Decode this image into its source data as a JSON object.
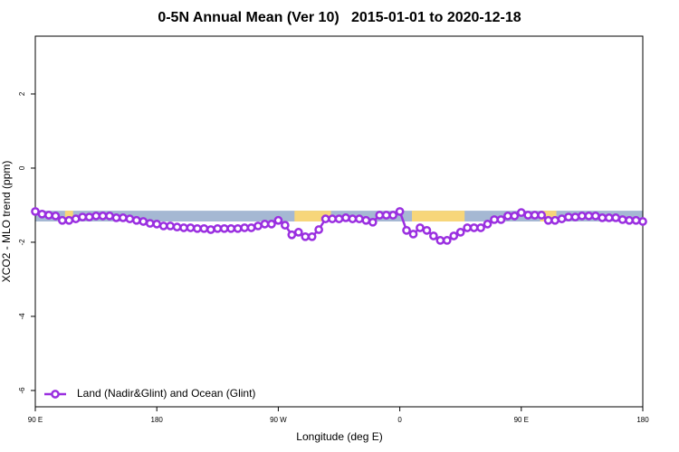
{
  "chart_data": {
    "type": "line",
    "title": "0-5N Annual Mean (Ver 10)   2015-01-01 to 2020-12-18",
    "x_label": "Longitude (deg E)",
    "y_label": "XCO2 - MLO trend (ppm)",
    "xlim": [
      90,
      540
    ],
    "ylim": [
      -6.44,
      3.56
    ],
    "xticks": [
      {
        "value": 90,
        "label": "90 E"
      },
      {
        "value": 180,
        "label": "180"
      },
      {
        "value": 270,
        "label": "90 W"
      },
      {
        "value": 360,
        "label": "0"
      },
      {
        "value": 450,
        "label": "90 E"
      },
      {
        "value": 540,
        "label": "180"
      }
    ],
    "yticks": [
      -6,
      -4,
      -2,
      0,
      2
    ],
    "legend": "bottom-left",
    "surface_band": {
      "ylim": [
        -1.15,
        -1.44
      ],
      "ocean_color": "#a5b8d3",
      "land_color": "#f7d67a",
      "land_ranges": [
        [
          112,
          118
        ],
        [
          282,
          309
        ],
        [
          369,
          408
        ],
        [
          464,
          476
        ]
      ]
    },
    "x": [
      90,
      95,
      100,
      105,
      110,
      115,
      120,
      125,
      130,
      135,
      140,
      145,
      150,
      155,
      160,
      165,
      170,
      175,
      180,
      185,
      190,
      195,
      200,
      205,
      210,
      215,
      220,
      225,
      230,
      235,
      240,
      245,
      250,
      255,
      260,
      265,
      270,
      275,
      280,
      285,
      290,
      295,
      300,
      305,
      310,
      315,
      320,
      325,
      330,
      335,
      340,
      345,
      350,
      355,
      360,
      365,
      370,
      375,
      380,
      385,
      390,
      395,
      400,
      405,
      410,
      415,
      420,
      425,
      430,
      435,
      440,
      445,
      450,
      455,
      460,
      465,
      470,
      475,
      480,
      485,
      490,
      495,
      500,
      505,
      510,
      515,
      520,
      525,
      530,
      535,
      540
    ],
    "series": [
      {
        "name": "Land (Nadir&Glint) and Ocean (Glint)",
        "color": "#9a2fe0",
        "values": [
          -1.17,
          -1.24,
          -1.27,
          -1.29,
          -1.41,
          -1.41,
          -1.37,
          -1.32,
          -1.32,
          -1.29,
          -1.29,
          -1.29,
          -1.34,
          -1.34,
          -1.37,
          -1.41,
          -1.44,
          -1.49,
          -1.51,
          -1.56,
          -1.56,
          -1.59,
          -1.61,
          -1.61,
          -1.63,
          -1.63,
          -1.66,
          -1.63,
          -1.63,
          -1.63,
          -1.63,
          -1.61,
          -1.61,
          -1.56,
          -1.51,
          -1.51,
          -1.41,
          -1.54,
          -1.8,
          -1.73,
          -1.85,
          -1.85,
          -1.66,
          -1.37,
          -1.37,
          -1.37,
          -1.34,
          -1.37,
          -1.37,
          -1.41,
          -1.46,
          -1.27,
          -1.27,
          -1.27,
          -1.17,
          -1.68,
          -1.78,
          -1.61,
          -1.68,
          -1.83,
          -1.95,
          -1.95,
          -1.83,
          -1.73,
          -1.61,
          -1.61,
          -1.61,
          -1.51,
          -1.39,
          -1.39,
          -1.29,
          -1.29,
          -1.2,
          -1.27,
          -1.27,
          -1.27,
          -1.41,
          -1.41,
          -1.37,
          -1.32,
          -1.32,
          -1.29,
          -1.29,
          -1.29,
          -1.34,
          -1.34,
          -1.34,
          -1.39,
          -1.41,
          -1.41,
          -1.44
        ]
      }
    ]
  }
}
